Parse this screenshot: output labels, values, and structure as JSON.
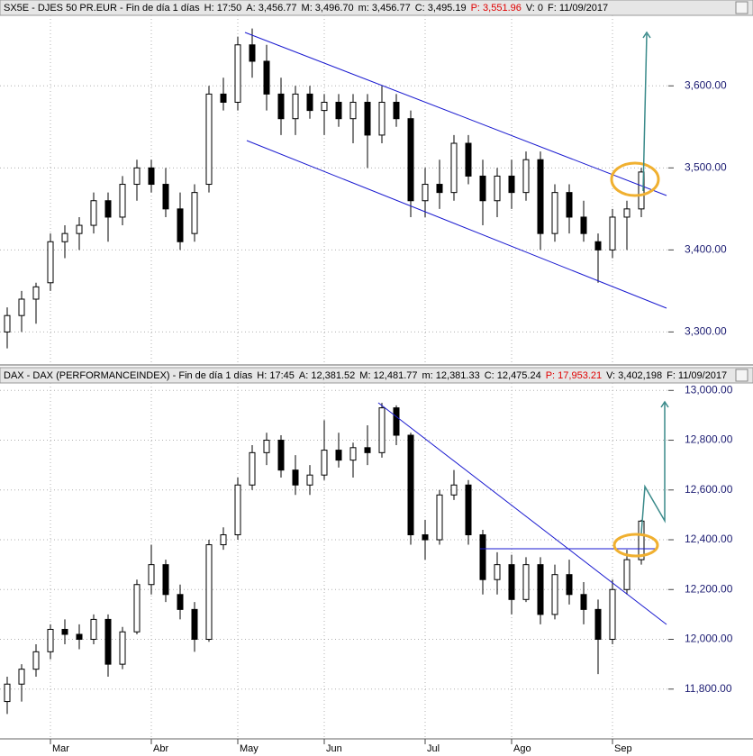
{
  "chart_data": [
    {
      "type": "candlestick",
      "header": [
        {
          "text": "SX5E - DJES 50 PR.EUR - Fin de día 1 días",
          "color": "#000000"
        },
        {
          "text": "H: 17:50",
          "color": "#000000"
        },
        {
          "text": "A: 3,456.77",
          "color": "#000000"
        },
        {
          "text": "M: 3,496.70",
          "color": "#000000"
        },
        {
          "text": "m: 3,456.77",
          "color": "#000000"
        },
        {
          "text": "C: 3,495.19",
          "color": "#000000"
        },
        {
          "text": "P: 3,551.96",
          "color": "#e00000"
        },
        {
          "text": "V: 0",
          "color": "#000000"
        },
        {
          "text": "F: 11/09/2017",
          "color": "#000000"
        }
      ],
      "ylim": [
        3262,
        3686
      ],
      "yticks": [
        {
          "value": 3300,
          "label": "3,300.00"
        },
        {
          "value": 3400,
          "label": "3,400.00"
        },
        {
          "value": 3500,
          "label": "3,500.00"
        },
        {
          "value": 3600,
          "label": "3,600.00"
        }
      ],
      "candles": [
        [
          3300,
          3330,
          3280,
          3320
        ],
        [
          3320,
          3350,
          3300,
          3340
        ],
        [
          3340,
          3360,
          3310,
          3355
        ],
        [
          3360,
          3420,
          3350,
          3410
        ],
        [
          3410,
          3430,
          3390,
          3420
        ],
        [
          3420,
          3440,
          3400,
          3430
        ],
        [
          3430,
          3470,
          3420,
          3460
        ],
        [
          3460,
          3470,
          3410,
          3440
        ],
        [
          3440,
          3490,
          3430,
          3480
        ],
        [
          3480,
          3510,
          3460,
          3500
        ],
        [
          3500,
          3510,
          3470,
          3480
        ],
        [
          3480,
          3500,
          3440,
          3450
        ],
        [
          3450,
          3470,
          3400,
          3410
        ],
        [
          3420,
          3480,
          3410,
          3470
        ],
        [
          3480,
          3600,
          3470,
          3590
        ],
        [
          3590,
          3610,
          3570,
          3580
        ],
        [
          3580,
          3660,
          3570,
          3650
        ],
        [
          3650,
          3670,
          3610,
          3630
        ],
        [
          3630,
          3650,
          3570,
          3590
        ],
        [
          3590,
          3610,
          3540,
          3560
        ],
        [
          3560,
          3600,
          3540,
          3590
        ],
        [
          3590,
          3600,
          3560,
          3570
        ],
        [
          3570,
          3590,
          3540,
          3580
        ],
        [
          3580,
          3590,
          3550,
          3560
        ],
        [
          3560,
          3590,
          3530,
          3580
        ],
        [
          3580,
          3590,
          3500,
          3540
        ],
        [
          3540,
          3600,
          3530,
          3580
        ],
        [
          3580,
          3590,
          3550,
          3560
        ],
        [
          3560,
          3570,
          3440,
          3460
        ],
        [
          3460,
          3500,
          3440,
          3480
        ],
        [
          3480,
          3510,
          3450,
          3470
        ],
        [
          3470,
          3540,
          3460,
          3530
        ],
        [
          3530,
          3540,
          3480,
          3490
        ],
        [
          3490,
          3510,
          3430,
          3460
        ],
        [
          3460,
          3500,
          3440,
          3490
        ],
        [
          3490,
          3510,
          3450,
          3470
        ],
        [
          3470,
          3520,
          3460,
          3510
        ],
        [
          3510,
          3520,
          3400,
          3420
        ],
        [
          3420,
          3480,
          3410,
          3470
        ],
        [
          3470,
          3480,
          3420,
          3440
        ],
        [
          3440,
          3460,
          3410,
          3420
        ],
        [
          3410,
          3420,
          3360,
          3400
        ],
        [
          3400,
          3450,
          3390,
          3440
        ],
        [
          3440,
          3460,
          3400,
          3450
        ],
        [
          3450,
          3500,
          3440,
          3495
        ]
      ]
    },
    {
      "type": "candlestick",
      "header": [
        {
          "text": "DAX - DAX (PERFORMANCEINDEX) - Fin de día 1 días",
          "color": "#000000"
        },
        {
          "text": "H: 17:45",
          "color": "#000000"
        },
        {
          "text": "A: 12,381.52",
          "color": "#000000"
        },
        {
          "text": "M: 12,481.77",
          "color": "#000000"
        },
        {
          "text": "m: 12,381.33",
          "color": "#000000"
        },
        {
          "text": "C: 12,475.24",
          "color": "#000000"
        },
        {
          "text": "P: 17,953.21",
          "color": "#e00000"
        },
        {
          "text": "V: 3,402,198",
          "color": "#000000"
        },
        {
          "text": "F: 11/09/2017",
          "color": "#000000"
        }
      ],
      "ylim": [
        11600,
        13030
      ],
      "yticks": [
        {
          "value": 11800,
          "label": "11,800.00"
        },
        {
          "value": 12000,
          "label": "12,000.00"
        },
        {
          "value": 12200,
          "label": "12,200.00"
        },
        {
          "value": 12400,
          "label": "12,400.00"
        },
        {
          "value": 12600,
          "label": "12,600.00"
        },
        {
          "value": 12800,
          "label": "12,800.00"
        },
        {
          "value": 13000,
          "label": "13,000.00"
        }
      ],
      "xticks": [
        {
          "value": 3,
          "label": "Mar"
        },
        {
          "value": 10,
          "label": "Abr"
        },
        {
          "value": 16,
          "label": "May"
        },
        {
          "value": 22,
          "label": "Jun"
        },
        {
          "value": 29,
          "label": "Jul"
        },
        {
          "value": 35,
          "label": "Ago"
        },
        {
          "value": 42,
          "label": "Sep"
        }
      ],
      "candles": [
        [
          11750,
          11850,
          11700,
          11820
        ],
        [
          11820,
          11900,
          11750,
          11880
        ],
        [
          11880,
          11980,
          11850,
          11950
        ],
        [
          11950,
          12060,
          11920,
          12040
        ],
        [
          12040,
          12080,
          11980,
          12020
        ],
        [
          12020,
          12060,
          11960,
          12000
        ],
        [
          12000,
          12100,
          11980,
          12080
        ],
        [
          12080,
          12100,
          11850,
          11900
        ],
        [
          11900,
          12050,
          11880,
          12030
        ],
        [
          12030,
          12240,
          12020,
          12220
        ],
        [
          12220,
          12380,
          12180,
          12300
        ],
        [
          12300,
          12320,
          12150,
          12180
        ],
        [
          12180,
          12220,
          12080,
          12120
        ],
        [
          12120,
          12150,
          11950,
          12000
        ],
        [
          12000,
          12400,
          11990,
          12380
        ],
        [
          12380,
          12450,
          12360,
          12420
        ],
        [
          12420,
          12650,
          12400,
          12620
        ],
        [
          12620,
          12780,
          12600,
          12750
        ],
        [
          12750,
          12830,
          12700,
          12800
        ],
        [
          12800,
          12820,
          12650,
          12680
        ],
        [
          12680,
          12740,
          12580,
          12620
        ],
        [
          12620,
          12700,
          12580,
          12660
        ],
        [
          12660,
          12880,
          12640,
          12760
        ],
        [
          12760,
          12830,
          12690,
          12720
        ],
        [
          12720,
          12790,
          12650,
          12770
        ],
        [
          12770,
          12860,
          12700,
          12750
        ],
        [
          12750,
          12950,
          12730,
          12930
        ],
        [
          12930,
          12940,
          12780,
          12820
        ],
        [
          12820,
          12830,
          12380,
          12420
        ],
        [
          12420,
          12480,
          12320,
          12400
        ],
        [
          12400,
          12600,
          12380,
          12580
        ],
        [
          12580,
          12680,
          12560,
          12620
        ],
        [
          12620,
          12640,
          12380,
          12420
        ],
        [
          12420,
          12440,
          12180,
          12240
        ],
        [
          12240,
          12350,
          12180,
          12300
        ],
        [
          12300,
          12340,
          12100,
          12160
        ],
        [
          12160,
          12330,
          12150,
          12300
        ],
        [
          12300,
          12330,
          12060,
          12100
        ],
        [
          12100,
          12300,
          12080,
          12260
        ],
        [
          12260,
          12320,
          12140,
          12180
        ],
        [
          12180,
          12230,
          12060,
          12120
        ],
        [
          12120,
          12160,
          11860,
          12000
        ],
        [
          12000,
          12240,
          11980,
          12200
        ],
        [
          12200,
          12360,
          12180,
          12320
        ],
        [
          12320,
          12480,
          12300,
          12475
        ]
      ]
    }
  ]
}
